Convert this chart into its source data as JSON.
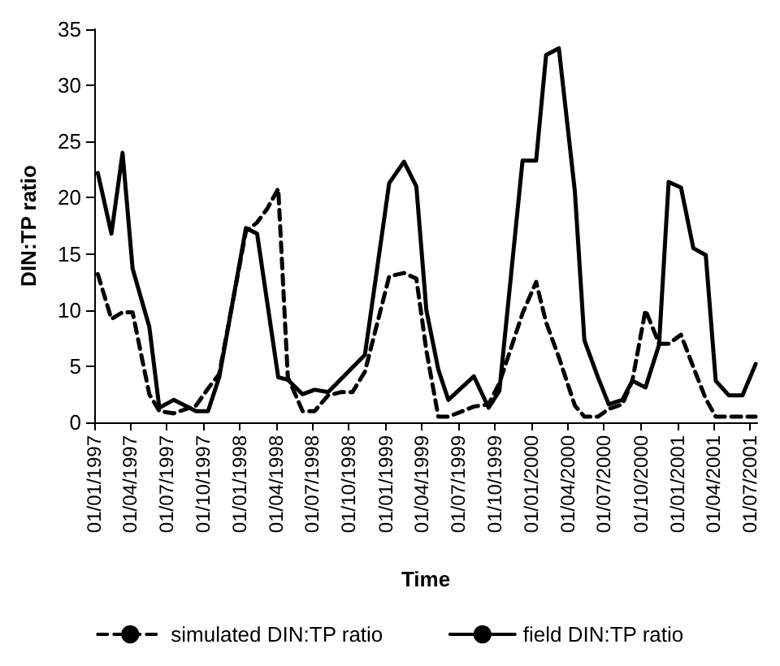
{
  "chart_data": {
    "type": "line",
    "xlabel": "Time",
    "ylabel": "DIN:TP ratio",
    "xlim": [
      "1997-01-01",
      "2001-07-20"
    ],
    "xticks": [
      {
        "value": "1997-01-01",
        "label": "01/01/1997"
      },
      {
        "value": "1997-04-01",
        "label": "01/04/1997"
      },
      {
        "value": "1997-07-01",
        "label": "01/07/1997"
      },
      {
        "value": "1997-10-01",
        "label": "01/10/1997"
      },
      {
        "value": "1998-01-01",
        "label": "01/01/1998"
      },
      {
        "value": "1998-04-01",
        "label": "01/04/1998"
      },
      {
        "value": "1998-07-01",
        "label": "01/07/1998"
      },
      {
        "value": "1998-10-01",
        "label": "01/10/1998"
      },
      {
        "value": "1999-01-01",
        "label": "01/01/1999"
      },
      {
        "value": "1999-04-01",
        "label": "01/04/1999"
      },
      {
        "value": "1999-07-01",
        "label": "01/07/1999"
      },
      {
        "value": "1999-10-01",
        "label": "01/10/1999"
      },
      {
        "value": "2000-01-01",
        "label": "01/01/2000"
      },
      {
        "value": "2000-04-01",
        "label": "01/04/2000"
      },
      {
        "value": "2000-07-01",
        "label": "01/07/2000"
      },
      {
        "value": "2000-10-01",
        "label": "01/10/2000"
      },
      {
        "value": "2001-01-01",
        "label": "01/01/2001"
      },
      {
        "value": "2001-04-01",
        "label": "01/04/2001"
      },
      {
        "value": "2001-07-01",
        "label": "01/07/2001"
      }
    ],
    "ylim": [
      0,
      35
    ],
    "yticks": [
      0,
      5,
      10,
      15,
      20,
      25,
      30,
      35
    ],
    "grid": false,
    "legend": "bottom",
    "marker": "none",
    "series": [
      {
        "name": "simulated DIN:TP ratio",
        "color": "#000000",
        "line_style": "dashed",
        "x": [
          "1997-01-10",
          "1997-02-13",
          "1997-03-13",
          "1997-04-07",
          "1997-05-19",
          "1997-06-13",
          "1997-07-19",
          "1997-09-13",
          "1997-10-13",
          "1997-11-10",
          "1998-01-16",
          "1998-02-13",
          "1998-03-10",
          "1998-04-07",
          "1998-05-01",
          "1998-06-07",
          "1998-07-07",
          "1998-08-10",
          "1998-09-13",
          "1998-10-10",
          "1998-11-10",
          "1999-01-10",
          "1999-02-16",
          "1999-03-19",
          "1999-04-13",
          "1999-05-13",
          "1999-06-07",
          "1999-08-10",
          "1999-09-16",
          "1999-10-13",
          "1999-12-10",
          "2000-01-13",
          "2000-02-07",
          "2000-03-10",
          "2000-04-19",
          "2000-05-13",
          "2000-06-16",
          "2000-07-13",
          "2000-08-16",
          "2000-09-10",
          "2000-10-13",
          "2000-11-16",
          "2000-12-10",
          "2001-01-10",
          "2001-02-10",
          "2001-03-13",
          "2001-04-07",
          "2001-05-10",
          "2001-06-13",
          "2001-07-16"
        ],
        "values": [
          13.2,
          9.2,
          9.8,
          9.8,
          2.5,
          1,
          0.8,
          1.5,
          3,
          4.3,
          17,
          17.8,
          19,
          20.8,
          4,
          1,
          1,
          2.4,
          2.7,
          2.7,
          4.5,
          13,
          13.3,
          12.8,
          6.4,
          0.5,
          0.5,
          1.4,
          1.6,
          3.5,
          9.7,
          12.5,
          8.9,
          5.8,
          1.5,
          0.5,
          0.5,
          1.2,
          1.6,
          3.7,
          10,
          7,
          7,
          7.8,
          4.9,
          2.1,
          0.5,
          0.5,
          0.5,
          0.5
        ]
      },
      {
        "name": "field DIN:TP ratio",
        "color": "#000000",
        "line_style": "solid",
        "x": [
          "1997-01-10",
          "1997-02-13",
          "1997-03-13",
          "1997-04-07",
          "1997-05-19",
          "1997-06-13",
          "1997-07-19",
          "1997-09-13",
          "1997-10-13",
          "1997-11-10",
          "1998-01-16",
          "1998-02-13",
          "1998-04-07",
          "1998-05-01",
          "1998-06-07",
          "1998-07-07",
          "1998-08-10",
          "1998-11-10",
          "1999-01-10",
          "1999-02-16",
          "1999-03-19",
          "1999-04-13",
          "1999-05-13",
          "1999-06-07",
          "1999-08-10",
          "1999-09-16",
          "1999-10-13",
          "1999-12-10",
          "2000-01-13",
          "2000-02-07",
          "2000-03-10",
          "2000-04-19",
          "2000-05-13",
          "2000-06-16",
          "2000-07-13",
          "2000-08-16",
          "2000-09-10",
          "2000-10-13",
          "2000-11-16",
          "2000-12-10",
          "2001-01-10",
          "2001-02-10",
          "2001-03-13",
          "2001-04-07",
          "2001-05-10",
          "2001-06-13",
          "2001-07-16"
        ],
        "values": [
          22.2,
          16.8,
          24,
          13.7,
          8.5,
          1.3,
          2,
          1,
          1,
          4,
          17.3,
          16.8,
          4,
          3.8,
          2.5,
          2.9,
          2.7,
          6,
          21.3,
          23.2,
          21,
          10,
          4.7,
          2,
          4.1,
          1.3,
          2.8,
          23.3,
          23.3,
          32.7,
          33.3,
          20.6,
          7.3,
          4,
          1.6,
          2,
          3.7,
          3.1,
          6.9,
          21.4,
          20.9,
          15.5,
          14.9,
          3.7,
          2.4,
          2.4,
          5.2
        ]
      }
    ]
  }
}
